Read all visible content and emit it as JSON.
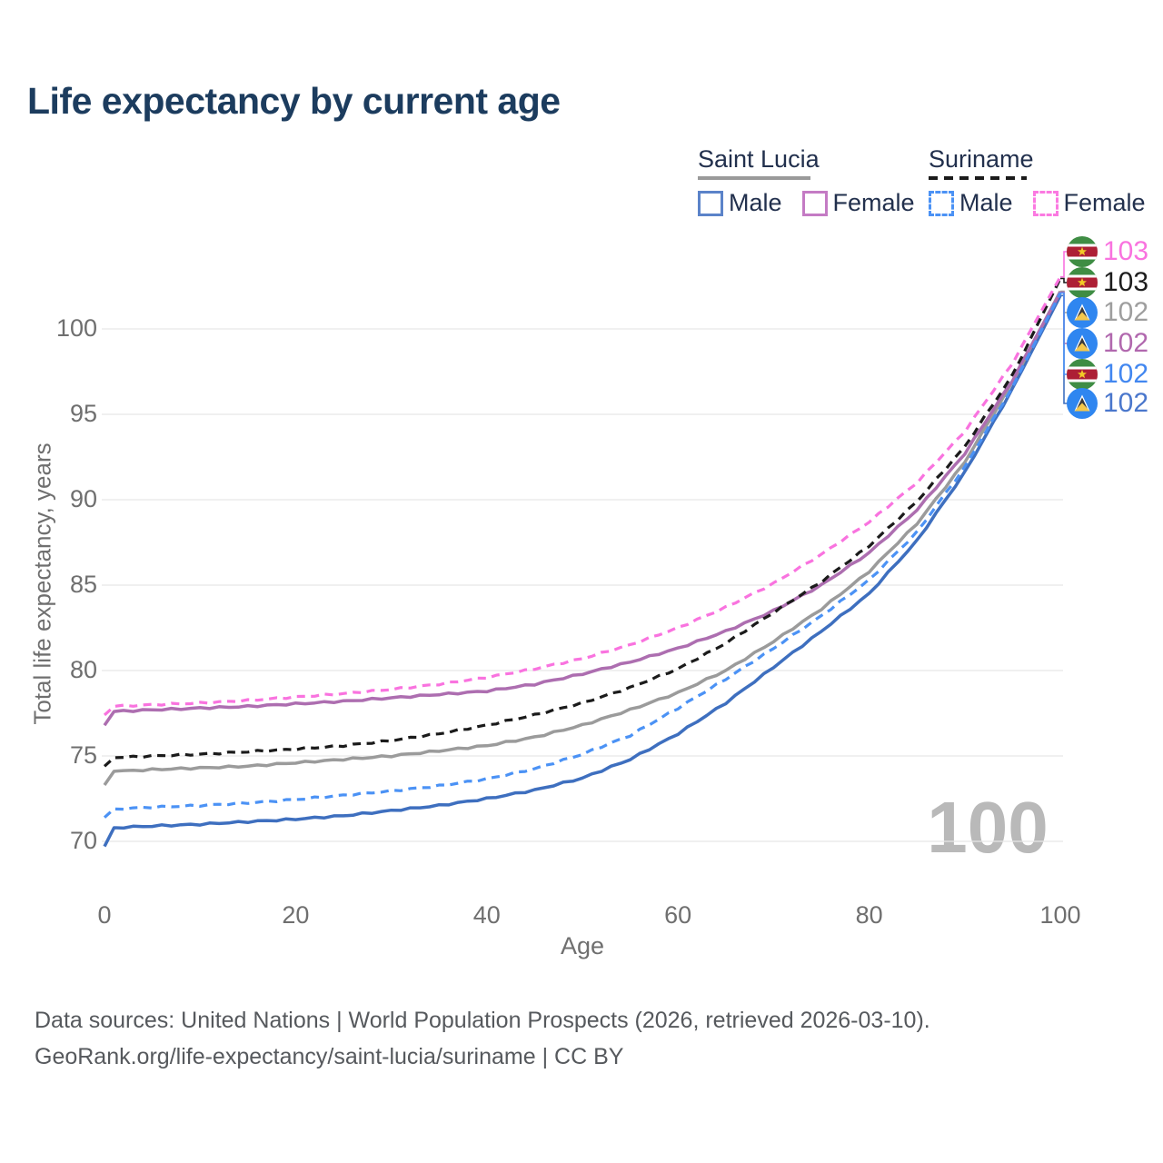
{
  "title": "Life expectancy by current age",
  "legend": {
    "groups": [
      {
        "label": "Saint Lucia",
        "line_style": "solid",
        "underline_color": "#9a9a9a",
        "items": [
          {
            "label": "Male",
            "swatch_color": "#5b83c9",
            "dashed": false
          },
          {
            "label": "Female",
            "swatch_color": "#c47bc4",
            "dashed": false
          }
        ]
      },
      {
        "label": "Suriname",
        "line_style": "dashed",
        "underline_color": "#1b1b1b",
        "items": [
          {
            "label": "Male",
            "swatch_color": "#4b92f5",
            "dashed": true
          },
          {
            "label": "Female",
            "swatch_color": "#fb7ae1",
            "dashed": true
          }
        ]
      }
    ]
  },
  "watermark": "100",
  "end_labels": [
    {
      "flag": "suriname-flag",
      "value": "103",
      "color": "#f973df",
      "series": "Suriname Female"
    },
    {
      "flag": "suriname-flag",
      "value": "103",
      "color": "#1d1d1d",
      "series": "Suriname Both"
    },
    {
      "flag": "saint-lucia-flag",
      "value": "102",
      "color": "#9e9e9e",
      "series": "Saint Lucia Both"
    },
    {
      "flag": "saint-lucia-flag",
      "value": "102",
      "color": "#b168ae",
      "series": "Saint Lucia Female"
    },
    {
      "flag": "suriname-flag",
      "value": "102",
      "color": "#4287f0",
      "series": "Suriname Male"
    },
    {
      "flag": "saint-lucia-flag",
      "value": "102",
      "color": "#4a77cc",
      "series": "Saint Lucia Male"
    }
  ],
  "footer": {
    "line1": "Data sources: United Nations | World Population Prospects (2026, retrieved 2026-03-10).",
    "line2": "GeoRank.org/life-expectancy/saint-lucia/suriname | CC BY"
  },
  "chart_data": {
    "type": "line",
    "title": "Life expectancy by current age",
    "xlabel": "Age",
    "ylabel": "Total life expectancy, years",
    "xlim": [
      0,
      100
    ],
    "ylim": [
      69.5,
      103.5
    ],
    "x_ticks": [
      0,
      20,
      40,
      60,
      80,
      100
    ],
    "y_ticks": [
      70,
      75,
      80,
      85,
      90,
      95,
      100
    ],
    "grid": true,
    "legend_position": "top-right",
    "anchor_ages": [
      0,
      1,
      5,
      10,
      15,
      20,
      25,
      30,
      35,
      40,
      45,
      50,
      55,
      60,
      65,
      70,
      75,
      80,
      85,
      90,
      95,
      100
    ],
    "series": [
      {
        "name": "Saint Lucia Male",
        "color": "#3e6fbf",
        "dashed": false,
        "end_row": 5,
        "values": [
          69.7,
          70.8,
          70.9,
          71.0,
          71.15,
          71.3,
          71.5,
          71.8,
          72.1,
          72.5,
          73.0,
          73.7,
          74.8,
          76.3,
          78.1,
          80.2,
          82.3,
          84.5,
          87.6,
          91.6,
          96.5,
          101.95
        ]
      },
      {
        "name": "Saint Lucia Both",
        "color": "#9b9b9b",
        "dashed": false,
        "end_row": 2,
        "values": [
          73.3,
          74.1,
          74.2,
          74.3,
          74.4,
          74.6,
          74.8,
          75.0,
          75.3,
          75.6,
          76.1,
          76.8,
          77.7,
          78.7,
          80.0,
          81.7,
          83.6,
          85.8,
          88.6,
          92.2,
          96.9,
          102.2
        ]
      },
      {
        "name": "Saint Lucia Female",
        "color": "#ad6eb0",
        "dashed": false,
        "end_row": 3,
        "values": [
          76.8,
          77.6,
          77.7,
          77.8,
          77.9,
          78.05,
          78.2,
          78.4,
          78.6,
          78.8,
          79.2,
          79.8,
          80.5,
          81.3,
          82.3,
          83.5,
          85.0,
          86.9,
          89.4,
          92.7,
          97.0,
          102.15
        ]
      },
      {
        "name": "Suriname Male",
        "color": "#4b92f5",
        "dashed": true,
        "end_row": 4,
        "values": [
          71.4,
          71.9,
          72.0,
          72.1,
          72.25,
          72.45,
          72.7,
          72.95,
          73.25,
          73.65,
          74.25,
          75.1,
          76.2,
          77.8,
          79.5,
          81.3,
          83.2,
          85.3,
          88.1,
          91.9,
          96.6,
          102.1
        ]
      },
      {
        "name": "Suriname Both",
        "color": "#1b1b1b",
        "dashed": true,
        "end_row": 1,
        "values": [
          74.4,
          74.9,
          75.0,
          75.1,
          75.25,
          75.4,
          75.6,
          75.9,
          76.3,
          76.8,
          77.4,
          78.1,
          79.0,
          80.1,
          81.6,
          83.4,
          85.2,
          87.3,
          89.9,
          93.1,
          97.3,
          102.95
        ]
      },
      {
        "name": "Suriname Female",
        "color": "#f973df",
        "dashed": true,
        "end_row": 0,
        "values": [
          77.4,
          77.9,
          78.0,
          78.1,
          78.25,
          78.45,
          78.65,
          78.9,
          79.2,
          79.6,
          80.1,
          80.7,
          81.5,
          82.5,
          83.7,
          85.1,
          86.8,
          88.7,
          91.0,
          94.0,
          98.0,
          103.05
        ]
      }
    ]
  }
}
